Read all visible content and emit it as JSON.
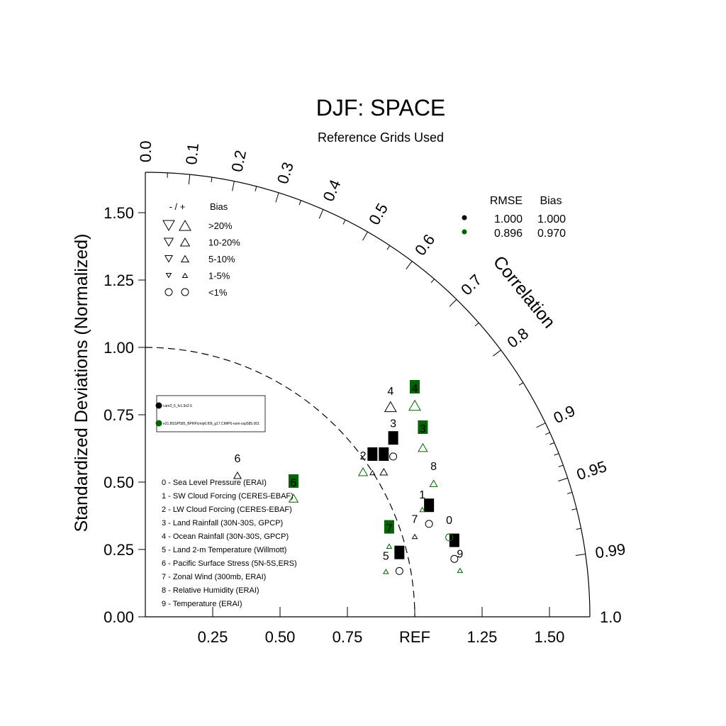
{
  "chart_data": {
    "type": "taylor",
    "title": "DJF: SPACE",
    "subtitle": "Reference Grids Used",
    "ylabel": "Standardized Deviations (Normalized)",
    "corr_label": "Correlation",
    "ref_label": "REF",
    "xlim": [
      0,
      1.65
    ],
    "ylim": [
      0,
      1.65
    ],
    "std_ticks": {
      "y": [
        {
          "v": 0.0,
          "label": "0.00"
        },
        {
          "v": 0.25,
          "label": "0.25"
        },
        {
          "v": 0.5,
          "label": "0.50"
        },
        {
          "v": 0.75,
          "label": "0.75"
        },
        {
          "v": 1.0,
          "label": "1.00"
        },
        {
          "v": 1.25,
          "label": "1.25"
        },
        {
          "v": 1.5,
          "label": "1.50"
        }
      ],
      "x": [
        {
          "v": 0.25,
          "label": "0.25"
        },
        {
          "v": 0.5,
          "label": "0.50"
        },
        {
          "v": 0.75,
          "label": "0.75"
        },
        {
          "v": 1.0,
          "label": "REF"
        },
        {
          "v": 1.25,
          "label": "1.25"
        },
        {
          "v": 1.5,
          "label": "1.50"
        }
      ]
    },
    "corr_ticks": [
      {
        "v": 0.0,
        "label": "0.0"
      },
      {
        "v": 0.1,
        "label": "0.1"
      },
      {
        "v": 0.2,
        "label": "0.2"
      },
      {
        "v": 0.3,
        "label": "0.3"
      },
      {
        "v": 0.4,
        "label": "0.4"
      },
      {
        "v": 0.5,
        "label": "0.5"
      },
      {
        "v": 0.6,
        "label": "0.6"
      },
      {
        "v": 0.7,
        "label": "0.7"
      },
      {
        "v": 0.8,
        "label": "0.8"
      },
      {
        "v": 0.9,
        "label": "0.9"
      },
      {
        "v": 0.95,
        "label": "0.95"
      },
      {
        "v": 0.99,
        "label": "0.99"
      },
      {
        "v": 1.0,
        "label": "1.0"
      }
    ],
    "corr_minor": [
      0.05,
      0.15,
      0.25,
      0.35,
      0.45,
      0.55,
      0.65,
      0.75,
      0.85,
      0.91,
      0.92,
      0.93,
      0.94,
      0.96,
      0.97,
      0.98
    ],
    "ref_arc_radius": 1.0,
    "bias_legend": {
      "header_sign": "- / +",
      "header_bias": "Bias",
      "rows": [
        {
          "label": ">20%",
          "size": 14,
          "shape": "triangle"
        },
        {
          "label": "10-20%",
          "size": 11,
          "shape": "triangle"
        },
        {
          "label": "5-10%",
          "size": 9,
          "shape": "triangle"
        },
        {
          "label": "1-5%",
          "size": 6,
          "shape": "triangle"
        },
        {
          "label": "<1%",
          "size": 10,
          "shape": "circle"
        }
      ]
    },
    "rmse_legend": {
      "header_rmse": "RMSE",
      "header_bias": "Bias",
      "rows": [
        {
          "color": "#000000",
          "rmse": "1.000",
          "bias": "1.000"
        },
        {
          "color": "#006400",
          "rmse": "0.896",
          "bias": "0.970"
        }
      ]
    },
    "case_legend": [
      {
        "color": "#000000",
        "name": "cam3_5_fv1.9x2.5"
      },
      {
        "color": "#006400",
        "name": "e21.BSSP585_BPRPcmip6.f09_g17.CMIP6-esm-ssp585.001"
      }
    ],
    "variables": [
      "0 - Sea Level Pressure (ERAI)",
      "1 - SW Cloud Forcing (CERES-EBAF)",
      "2 - LW Cloud Forcing (CERES-EBAF)",
      "3 - Land Rainfall (30N-30S, GPCP)",
      "4 - Ocean Rainfall (30N-30S, GPCP)",
      "5 - Land 2-m Temperature (Willmott)",
      "6 - Pacific Surface Stress (5N-5S,ERS)",
      "7 - Zonal Wind (300mb, ERAI)",
      "8 - Relative Humidity (ERAI)",
      "9 - Temperature (ERAI)"
    ],
    "series": [
      {
        "name": "cam3_5_fv1.9x2.5",
        "color": "#000000",
        "points": [
          {
            "id": "0",
            "x": 1.053,
            "y": 0.345,
            "marker": "circle",
            "size": 10,
            "boxed": true,
            "lx": 1.053,
            "ly": 0.41
          },
          {
            "id": "1",
            "x": 0.843,
            "y": 0.535,
            "marker": "triangle-up",
            "size": 6,
            "boxed": true,
            "lx": 0.843,
            "ly": 0.6
          },
          {
            "id": "2",
            "x": 0.92,
            "y": 0.595,
            "marker": "circle",
            "size": 10,
            "boxed": true,
            "lx": 0.92,
            "ly": 0.66
          },
          {
            "id": "3",
            "x": 0.92,
            "y": 0.595,
            "marker": "none",
            "size": 0,
            "boxed": false,
            "lx": 0.92,
            "ly": 0.72
          },
          {
            "id": "4",
            "x": 0.91,
            "y": 0.78,
            "marker": "triangle-up",
            "size": 14,
            "boxed": false,
            "lx": 0.91,
            "ly": 0.84
          },
          {
            "id": "5",
            "x": 0.943,
            "y": 0.17,
            "marker": "circle",
            "size": 10,
            "boxed": true,
            "lx": 0.943,
            "ly": 0.235
          },
          {
            "id": "6",
            "x": 0.342,
            "y": 0.525,
            "marker": "triangle-up",
            "size": 9,
            "boxed": false,
            "lx": 0.342,
            "ly": 0.59
          },
          {
            "id": "7",
            "x": 1.0,
            "y": 0.298,
            "marker": "triangle-up",
            "size": 6,
            "boxed": false,
            "lx": 1.0,
            "ly": 0.365
          },
          {
            "id": "8",
            "x": 0.885,
            "y": 0.538,
            "marker": "triangle-up",
            "size": 9,
            "boxed": true,
            "lx": 0.885,
            "ly": 0.6
          },
          {
            "id": "9",
            "x": 1.147,
            "y": 0.215,
            "marker": "circle",
            "size": 10,
            "boxed": true,
            "lx": 1.147,
            "ly": 0.28
          }
        ]
      },
      {
        "name": "e21.BSSP585_BPRPcmip6.f09_g17.CMIP6-esm-ssp585.001",
        "color": "#006400",
        "points": [
          {
            "id": "0",
            "x": 1.128,
            "y": 0.295,
            "marker": "circle",
            "size": 10,
            "boxed": false,
            "lx": 1.128,
            "ly": 0.36
          },
          {
            "id": "1",
            "x": 1.028,
            "y": 0.398,
            "marker": "triangle-up",
            "size": 6,
            "boxed": false,
            "lx": 1.028,
            "ly": 0.455
          },
          {
            "id": "2",
            "x": 0.808,
            "y": 0.538,
            "marker": "triangle-up",
            "size": 11,
            "boxed": false,
            "lx": 0.808,
            "ly": 0.6
          },
          {
            "id": "3",
            "x": 1.03,
            "y": 0.628,
            "marker": "triangle-up",
            "size": 11,
            "boxed": true,
            "lx": 1.03,
            "ly": 0.7
          },
          {
            "id": "4",
            "x": 1.0,
            "y": 0.785,
            "marker": "triangle-up",
            "size": 14,
            "boxed": true,
            "lx": 1.0,
            "ly": 0.85
          },
          {
            "id": "5",
            "x": 0.893,
            "y": 0.168,
            "marker": "triangle-up",
            "size": 6,
            "boxed": false,
            "lx": 0.893,
            "ly": 0.228
          },
          {
            "id": "6",
            "x": 0.55,
            "y": 0.44,
            "marker": "triangle-up",
            "size": 11,
            "boxed": true,
            "lx": 0.55,
            "ly": 0.5
          },
          {
            "id": "7",
            "x": 0.905,
            "y": 0.262,
            "marker": "triangle-up",
            "size": 6,
            "boxed": true,
            "lx": 0.905,
            "ly": 0.33
          },
          {
            "id": "8",
            "x": 1.07,
            "y": 0.495,
            "marker": "triangle-up",
            "size": 9,
            "boxed": false,
            "lx": 1.07,
            "ly": 0.56
          },
          {
            "id": "9",
            "x": 1.168,
            "y": 0.172,
            "marker": "triangle-up",
            "size": 6,
            "boxed": false,
            "lx": 1.168,
            "ly": 0.235
          }
        ]
      }
    ]
  }
}
